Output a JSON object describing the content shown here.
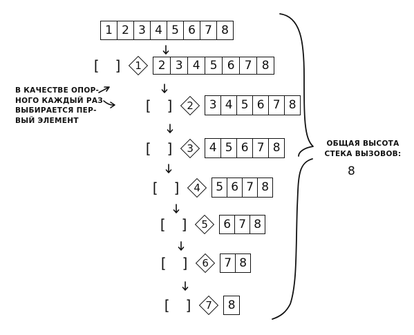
{
  "rows": [
    {
      "empty": "",
      "pivot": "",
      "cells": [
        "1",
        "2",
        "3",
        "4",
        "5",
        "6",
        "7",
        "8"
      ]
    },
    {
      "empty": "[ ]",
      "pivot": "1",
      "cells": [
        "2",
        "3",
        "4",
        "5",
        "6",
        "7",
        "8"
      ]
    },
    {
      "empty": "[ ]",
      "pivot": "2",
      "cells": [
        "3",
        "4",
        "5",
        "6",
        "7",
        "8"
      ]
    },
    {
      "empty": "[ ]",
      "pivot": "3",
      "cells": [
        "4",
        "5",
        "6",
        "7",
        "8"
      ]
    },
    {
      "empty": "[ ]",
      "pivot": "4",
      "cells": [
        "5",
        "6",
        "7",
        "8"
      ]
    },
    {
      "empty": "[ ]",
      "pivot": "5",
      "cells": [
        "6",
        "7",
        "8"
      ]
    },
    {
      "empty": "[ ]",
      "pivot": "6",
      "cells": [
        "7",
        "8"
      ]
    },
    {
      "empty": "[ ]",
      "pivot": "7",
      "cells": [
        "8"
      ]
    }
  ],
  "note": {
    "lines": [
      "В КАЧЕСТВЕ ОПОР-",
      "НОГО КАЖДЫЙ РАЗ",
      "ВЫБИРАЕТСЯ ПЕР-",
      "ВЫЙ ЭЛЕМЕНТ"
    ]
  },
  "stack": {
    "label_lines": [
      "ОБЩАЯ ВЫСОТА",
      "СТЕКА ВЫЗОВОВ:"
    ],
    "height": "8"
  }
}
